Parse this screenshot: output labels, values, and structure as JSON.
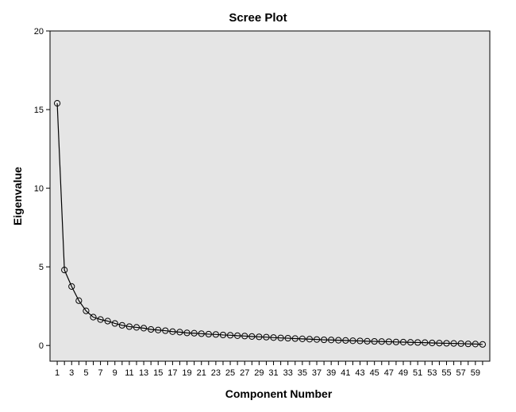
{
  "chart_data": {
    "type": "line",
    "title": "Scree Plot",
    "xlabel": "Component Number",
    "ylabel": "Eigenvalue",
    "xlim": [
      0,
      61
    ],
    "ylim": [
      -1,
      20
    ],
    "yticks": [
      0,
      5,
      10,
      15,
      20
    ],
    "xticks": [
      1,
      3,
      5,
      7,
      9,
      11,
      13,
      15,
      17,
      19,
      21,
      23,
      25,
      27,
      29,
      31,
      33,
      35,
      37,
      39,
      41,
      43,
      45,
      47,
      49,
      51,
      53,
      55,
      57,
      59
    ],
    "grid": false,
    "plot_background": "#e5e5e5",
    "line_color": "#000000",
    "marker": "open-circle",
    "series": [
      {
        "x": [
          1,
          2,
          3,
          4,
          5,
          6,
          7,
          8,
          9,
          10,
          11,
          12,
          13,
          14,
          15,
          16,
          17,
          18,
          19,
          20,
          21,
          22,
          23,
          24,
          25,
          26,
          27,
          28,
          29,
          30,
          31,
          32,
          33,
          34,
          35,
          36,
          37,
          38,
          39,
          40,
          41,
          42,
          43,
          44,
          45,
          46,
          47,
          48,
          49,
          50,
          51,
          52,
          53,
          54,
          55,
          56,
          57,
          58,
          59,
          60
        ],
        "values": [
          15.4,
          4.8,
          3.75,
          2.85,
          2.2,
          1.8,
          1.65,
          1.55,
          1.4,
          1.28,
          1.2,
          1.15,
          1.1,
          1.02,
          0.98,
          0.94,
          0.88,
          0.85,
          0.8,
          0.78,
          0.75,
          0.72,
          0.7,
          0.67,
          0.65,
          0.62,
          0.6,
          0.57,
          0.55,
          0.53,
          0.5,
          0.48,
          0.46,
          0.44,
          0.42,
          0.4,
          0.38,
          0.36,
          0.35,
          0.33,
          0.32,
          0.3,
          0.29,
          0.27,
          0.26,
          0.25,
          0.24,
          0.22,
          0.21,
          0.2,
          0.19,
          0.18,
          0.16,
          0.15,
          0.14,
          0.13,
          0.12,
          0.1,
          0.09,
          0.07
        ]
      }
    ]
  }
}
